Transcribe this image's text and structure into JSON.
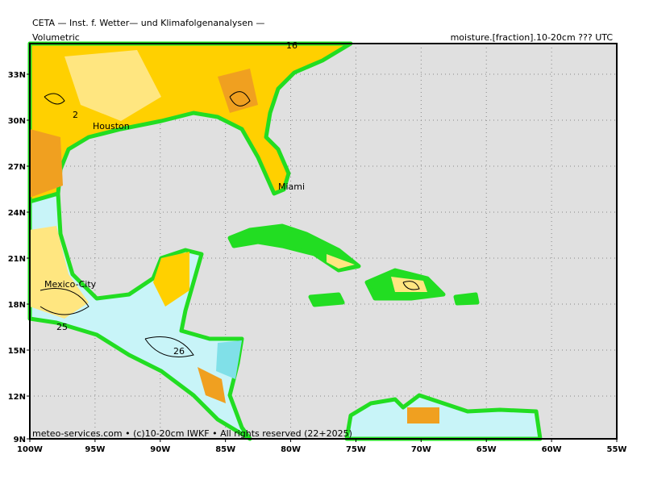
{
  "header": {
    "institute": "CETA — Inst. f. Wetter— und Klimafolgenanalysen —",
    "field": "Volumetric",
    "variable": "moisture.[fraction].10-20cm ??? UTC"
  },
  "map": {
    "lat_labels": [
      "33N",
      "30N",
      "27N",
      "24N",
      "21N",
      "18N",
      "15N",
      "12N",
      "9N"
    ],
    "lon_labels": [
      "100W",
      "95W",
      "90W",
      "85W",
      "80W",
      "75W",
      "70W",
      "65W",
      "60W",
      "55W"
    ],
    "places": [
      "Houston",
      "Miami",
      "Mexico-City"
    ],
    "contour_labels": [
      "2",
      "16",
      "25",
      "26"
    ],
    "footer": "meteo-services.com • (c)10-20cm IWKF • All rights reserved (22+2025)"
  }
}
